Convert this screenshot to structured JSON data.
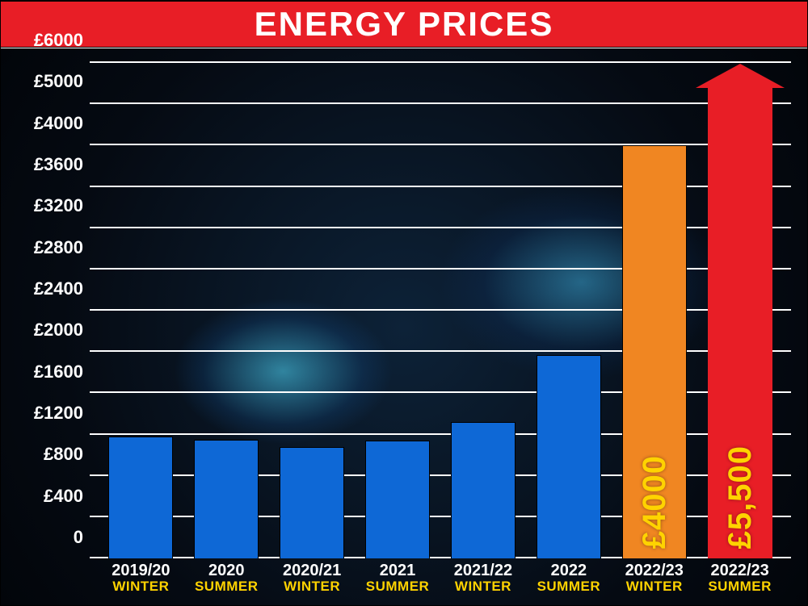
{
  "chart": {
    "type": "bar",
    "title": "ENERGY PRICES",
    "title_bg": "#e81e26",
    "title_color": "#ffffff",
    "title_fontsize": 42,
    "currency_prefix": "£",
    "y_axis": {
      "min": 0,
      "max": 6000,
      "ticks": [
        0,
        400,
        800,
        1200,
        1600,
        2000,
        2400,
        2800,
        3200,
        3600,
        4000,
        5000,
        6000
      ],
      "label_color": "#ffffff",
      "label_fontsize": 22,
      "gridline_color": "#ffffff"
    },
    "x_axis": {
      "period_color": "#ffffff",
      "season_color": "#ffd300",
      "period_fontsize": 20,
      "season_fontsize": 17
    },
    "bar_width_pct": 9.2,
    "bar_gap_pct": 3.0,
    "bars": [
      {
        "period": "2019/20",
        "season": "WINTER",
        "value": 1180,
        "color": "#0e68d6",
        "type": "bar"
      },
      {
        "period": "2020",
        "season": "SUMMER",
        "value": 1150,
        "color": "#0e68d6",
        "type": "bar"
      },
      {
        "period": "2020/21",
        "season": "WINTER",
        "value": 1080,
        "color": "#0e68d6",
        "type": "bar"
      },
      {
        "period": "2021",
        "season": "SUMMER",
        "value": 1140,
        "color": "#0e68d6",
        "type": "bar"
      },
      {
        "period": "2021/22",
        "season": "WINTER",
        "value": 1320,
        "color": "#0e68d6",
        "type": "bar"
      },
      {
        "period": "2022",
        "season": "SUMMER",
        "value": 1970,
        "color": "#0e68d6",
        "type": "bar"
      },
      {
        "period": "2022/23",
        "season": "WINTER",
        "value": 4000,
        "color": "#f08622",
        "type": "bar",
        "value_label": "£4000",
        "label_color": "#ffd300"
      },
      {
        "period": "2022/23",
        "season": "SUMMER",
        "value": 5500,
        "color": "#e81e26",
        "type": "arrow",
        "arrow_tip": 6000,
        "value_label": "£5,500",
        "label_color": "#ffd300"
      }
    ],
    "background": {
      "description": "dark photo of gas hob blue flames",
      "base_color": "#050a12",
      "flame_color": "#4fd8ff"
    }
  }
}
